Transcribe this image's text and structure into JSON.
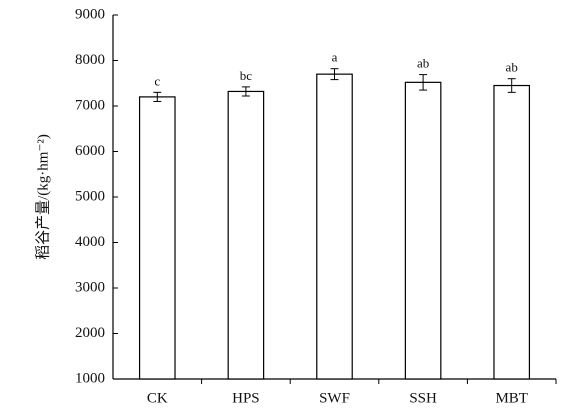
{
  "chart_data": {
    "type": "bar",
    "y_label": "稻谷产量/(kg·hm⁻²)",
    "categories": [
      "CK",
      "HPS",
      "SWF",
      "SSH",
      "MBT"
    ],
    "values": [
      7200,
      7320,
      7700,
      7520,
      7450
    ],
    "errors": [
      100,
      100,
      120,
      170,
      150
    ],
    "annotations": [
      "c",
      "bc",
      "a",
      "ab",
      "ab"
    ],
    "color": "#ffffff",
    "ylim": [
      1000,
      9000
    ],
    "yticks": [
      1000,
      2000,
      3000,
      4000,
      5000,
      6000,
      7000,
      8000,
      9000
    ],
    "grid": false
  }
}
